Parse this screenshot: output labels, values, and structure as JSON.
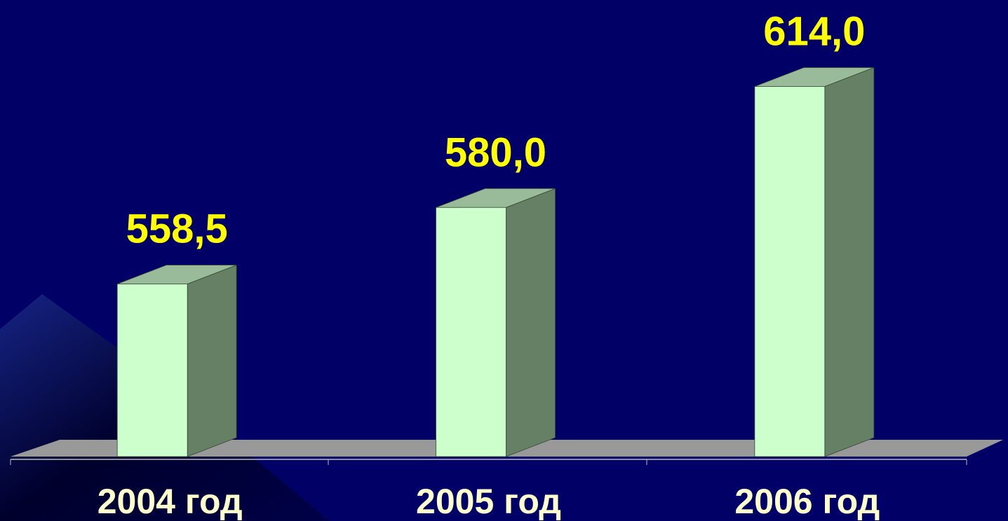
{
  "chart_data": {
    "type": "bar3d",
    "categories": [
      "2004 год",
      "2005 год",
      "2006 год"
    ],
    "values": [
      558.5,
      580.0,
      614.0
    ],
    "value_labels": [
      "558,5",
      "580,0",
      "614,0"
    ],
    "ylim": [
      510,
      620
    ],
    "color": "#ccffcc"
  }
}
